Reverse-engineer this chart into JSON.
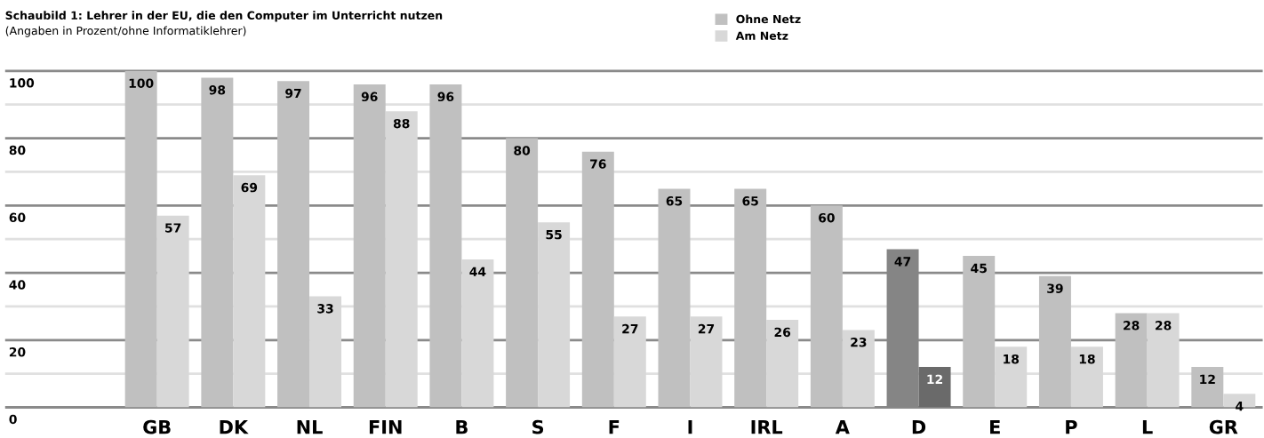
{
  "chart_data": {
    "type": "bar",
    "title": "Schaubild 1: Lehrer in der EU, die den Computer im Unterricht nutzen",
    "subtitle": "(Angaben in Prozent/ohne Informatiklehrer)",
    "categories": [
      "GB",
      "DK",
      "NL",
      "FIN",
      "B",
      "S",
      "F",
      "I",
      "IRL",
      "A",
      "D",
      "E",
      "P",
      "L",
      "GR"
    ],
    "series": [
      {
        "name": "Ohne Netz",
        "color": "#c0c0c0",
        "values": [
          100,
          98,
          97,
          96,
          96,
          80,
          76,
          65,
          65,
          60,
          47,
          45,
          39,
          28,
          12
        ],
        "colors": [
          "#c0c0c0",
          "#c0c0c0",
          "#c0c0c0",
          "#c0c0c0",
          "#c0c0c0",
          "#c0c0c0",
          "#c0c0c0",
          "#c0c0c0",
          "#c0c0c0",
          "#c0c0c0",
          "#858585",
          "#c0c0c0",
          "#c0c0c0",
          "#c0c0c0",
          "#c0c0c0"
        ]
      },
      {
        "name": "Am Netz",
        "color": "#d8d8d8",
        "values": [
          57,
          69,
          33,
          88,
          44,
          55,
          27,
          27,
          26,
          23,
          12,
          18,
          18,
          28,
          4
        ],
        "colors": [
          "#d8d8d8",
          "#d8d8d8",
          "#d8d8d8",
          "#d8d8d8",
          "#d8d8d8",
          "#d8d8d8",
          "#d8d8d8",
          "#d8d8d8",
          "#d8d8d8",
          "#d8d8d8",
          "#6a6a6a",
          "#d8d8d8",
          "#d8d8d8",
          "#d8d8d8",
          "#d8d8d8"
        ]
      }
    ],
    "ylim": [
      0,
      100
    ],
    "yticks": [
      0,
      {
        "value": 10,
        "label": null
      },
      20,
      {
        "value": 30,
        "label": null
      },
      40,
      {
        "value": 50,
        "label": null
      },
      60,
      {
        "value": 70,
        "label": null
      },
      80,
      {
        "value": 90,
        "label": null
      },
      100
    ],
    "grid": "y",
    "legend": "top",
    "data_labels": true
  }
}
